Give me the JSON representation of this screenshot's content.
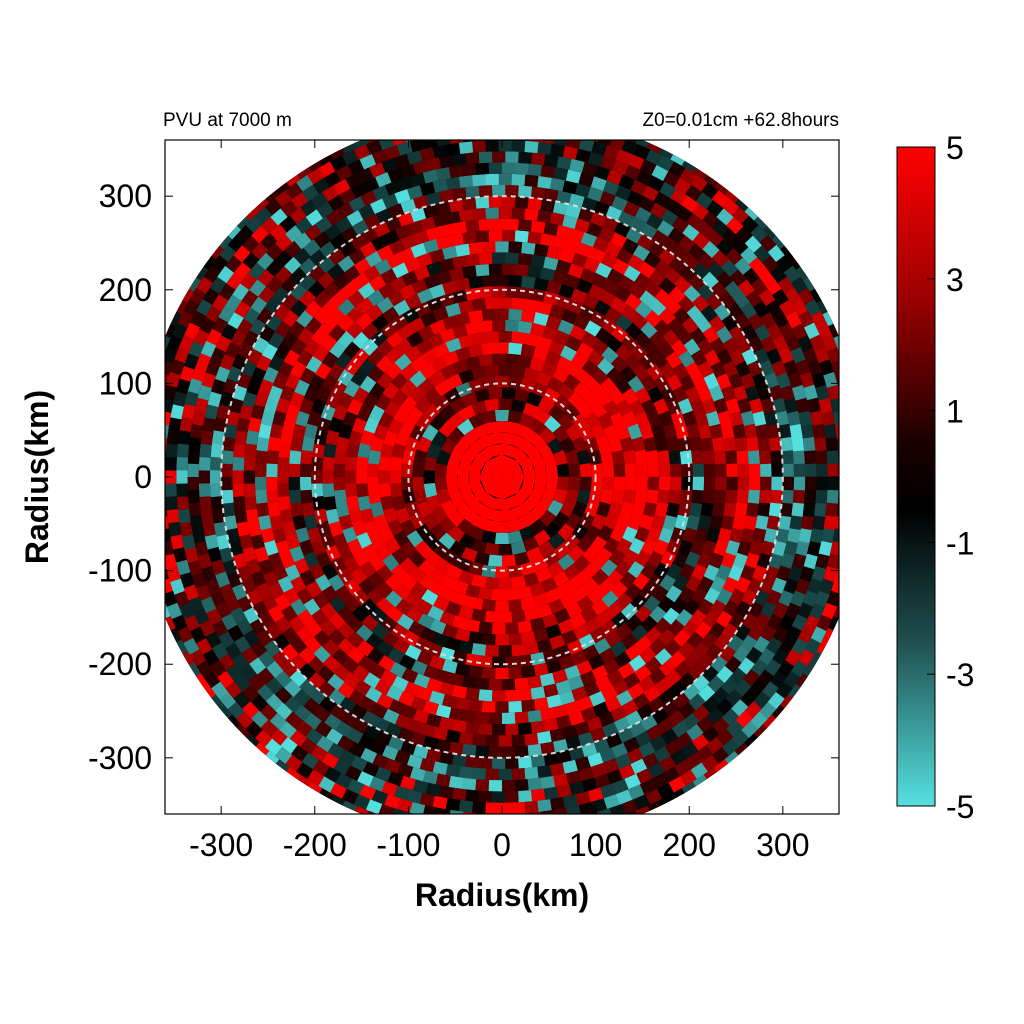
{
  "chart_data": {
    "type": "heatmap",
    "title_left": "PVU at  7000 m",
    "title_right": "Z0=0.01cm  +62.8hours",
    "xlabel": "Radius(km)",
    "ylabel": "Radius(km)",
    "xlim": [
      -360,
      360
    ],
    "ylim": [
      -360,
      360
    ],
    "x_ticks": [
      -300,
      -200,
      -100,
      0,
      100,
      200,
      300
    ],
    "y_ticks": [
      300,
      200,
      100,
      0,
      -100,
      -200,
      -300
    ],
    "data_domain_radius_km": 390,
    "reference_circles_km": [
      100,
      200,
      300
    ],
    "colorbar": {
      "range": [
        -5,
        5
      ],
      "ticks": [
        5,
        3,
        1,
        -1,
        -3,
        -5
      ],
      "colors": {
        "max": "#ff0000",
        "high": "#8a0000",
        "zero": "#000000",
        "low": "#1f4f4f",
        "min": "#55e0e0"
      }
    },
    "description_values": {
      "eye_core_value": 5,
      "eye_core_radius_km": 60
    }
  }
}
